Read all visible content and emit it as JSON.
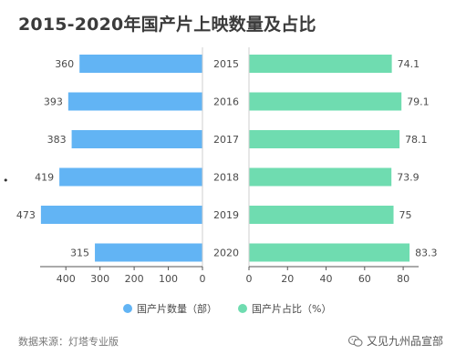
{
  "title": "2015-2020年国产片上映数量及占比",
  "source": "数据来源：灯塔专业版",
  "watermark": "又见九州品宣部",
  "watermark_icon": "wechat-icon",
  "colors": {
    "left_bar": "#62b4f4",
    "right_bar": "#6fdcb0",
    "axis": "#555555"
  },
  "chart_data": {
    "type": "bar",
    "orientation": "horizontal",
    "layout": "butterfly",
    "categories": [
      "2015",
      "2016",
      "2017",
      "2018",
      "2019",
      "2020"
    ],
    "series": [
      {
        "name": "国产片数量（部）",
        "values": [
          360,
          393,
          383,
          419,
          473,
          315
        ],
        "data_labels": [
          "360",
          "393",
          "383",
          "419",
          "473",
          "315"
        ],
        "xlim": [
          0,
          470
        ],
        "ticks": [
          "400",
          "300",
          "200",
          "100",
          "0"
        ],
        "tick_values": [
          400,
          300,
          200,
          100,
          0
        ],
        "direction": "right-to-left"
      },
      {
        "name": "国产片占比（%）",
        "values": [
          74.1,
          79.1,
          78.1,
          73.9,
          75,
          83.3
        ],
        "data_labels": [
          "74.1",
          "79.1",
          "78.1",
          "73.9",
          "75",
          "83.3"
        ],
        "xlim": [
          0,
          88
        ],
        "ticks": [
          "0",
          "20",
          "40",
          "60",
          "80"
        ],
        "tick_values": [
          0,
          20,
          40,
          60,
          80
        ],
        "direction": "left-to-right"
      }
    ],
    "legend_position": "bottom",
    "grid": false
  }
}
